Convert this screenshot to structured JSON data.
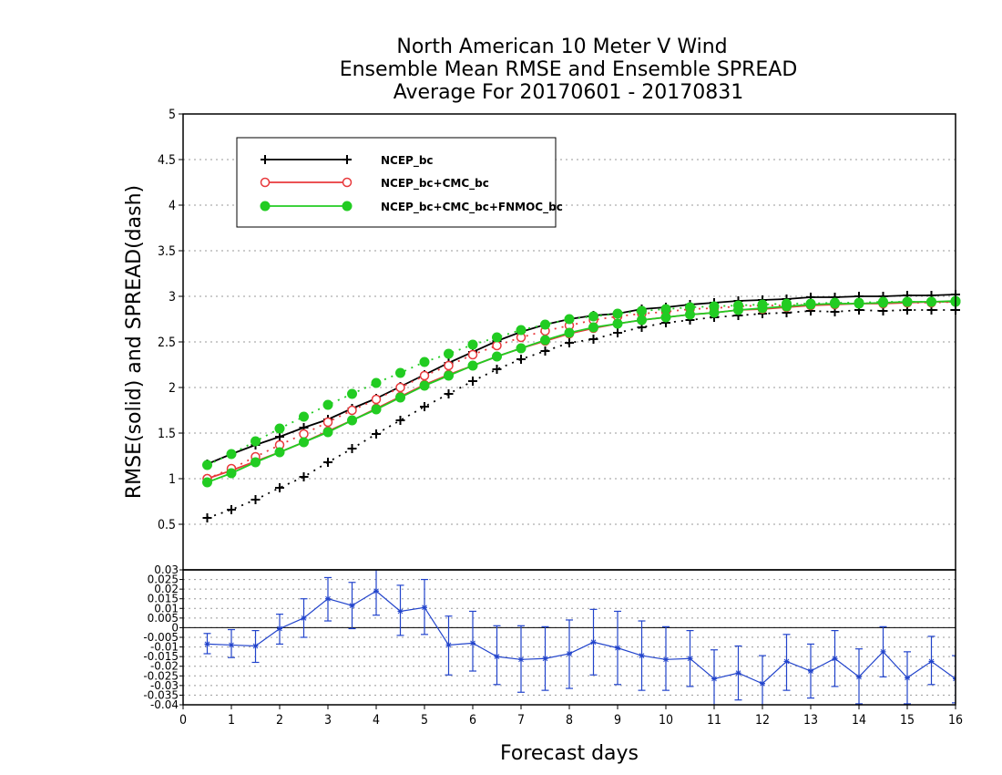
{
  "chart_data": [
    {
      "type": "line",
      "title_lines": [
        "North American 10 Meter V Wind",
        "Ensemble Mean RMSE and Ensemble SPREAD",
        "Average For 20170601 - 20170831"
      ],
      "ylabel": "RMSE(solid) and SPREAD(dash)",
      "ylim": [
        0,
        5
      ],
      "y_ticks": [
        0.5,
        1,
        1.5,
        2,
        2.5,
        3,
        3.5,
        4,
        4.5,
        5
      ],
      "y_tick_labels": [
        "0.5",
        "1",
        "1.5",
        "2",
        "2.5",
        "3",
        "3.5",
        "4",
        "4.5",
        "5"
      ],
      "grid": true,
      "legend_position": "top-left",
      "x": [
        0.5,
        1,
        1.5,
        2,
        2.5,
        3,
        3.5,
        4,
        4.5,
        5,
        5.5,
        6,
        6.5,
        7,
        7.5,
        8,
        8.5,
        9,
        9.5,
        10,
        10.5,
        11,
        11.5,
        12,
        12.5,
        13,
        13.5,
        14,
        14.5,
        15,
        15.5,
        16
      ],
      "series": [
        {
          "name": "NCEP_bc",
          "color": "#000000",
          "marker": "plus",
          "rmse": [
            1.16,
            1.27,
            1.37,
            1.46,
            1.56,
            1.65,
            1.77,
            1.88,
            2.01,
            2.14,
            2.27,
            2.39,
            2.51,
            2.61,
            2.69,
            2.75,
            2.79,
            2.81,
            2.86,
            2.88,
            2.91,
            2.93,
            2.95,
            2.96,
            2.97,
            2.99,
            2.99,
            3.0,
            3.0,
            3.01,
            3.01,
            3.02
          ],
          "spread": [
            0.57,
            0.66,
            0.77,
            0.9,
            1.02,
            1.18,
            1.33,
            1.49,
            1.64,
            1.79,
            1.93,
            2.07,
            2.2,
            2.31,
            2.4,
            2.49,
            2.53,
            2.6,
            2.66,
            2.71,
            2.74,
            2.77,
            2.79,
            2.81,
            2.82,
            2.84,
            2.83,
            2.85,
            2.84,
            2.85,
            2.85,
            2.85
          ]
        },
        {
          "name": "NCEP_bc+CMC_bc",
          "color": "#e8393c",
          "marker": "open-circle",
          "rmse": [
            1.0,
            1.09,
            1.19,
            1.29,
            1.4,
            1.52,
            1.64,
            1.77,
            1.9,
            2.03,
            2.14,
            2.24,
            2.34,
            2.43,
            2.51,
            2.59,
            2.65,
            2.7,
            2.74,
            2.77,
            2.8,
            2.82,
            2.85,
            2.86,
            2.88,
            2.9,
            2.91,
            2.92,
            2.92,
            2.93,
            2.94,
            2.94
          ],
          "spread": [
            1.0,
            1.11,
            1.24,
            1.37,
            1.49,
            1.62,
            1.75,
            1.87,
            2.0,
            2.13,
            2.24,
            2.36,
            2.46,
            2.55,
            2.62,
            2.68,
            2.74,
            2.78,
            2.81,
            2.83,
            2.86,
            2.87,
            2.89,
            2.9,
            2.9,
            2.91,
            2.92,
            2.92,
            2.93,
            2.93,
            2.93,
            2.94
          ]
        },
        {
          "name": "NCEP_bc+CMC_bc+FNMOC_bc",
          "color": "#22cc22",
          "marker": "filled-circle",
          "rmse": [
            0.96,
            1.06,
            1.18,
            1.29,
            1.4,
            1.51,
            1.64,
            1.76,
            1.89,
            2.02,
            2.13,
            2.24,
            2.34,
            2.43,
            2.52,
            2.6,
            2.66,
            2.7,
            2.74,
            2.77,
            2.8,
            2.82,
            2.85,
            2.87,
            2.89,
            2.91,
            2.92,
            2.92,
            2.93,
            2.94,
            2.94,
            2.95
          ],
          "spread": [
            1.15,
            1.27,
            1.41,
            1.55,
            1.68,
            1.81,
            1.93,
            2.05,
            2.16,
            2.28,
            2.37,
            2.47,
            2.55,
            2.63,
            2.69,
            2.75,
            2.78,
            2.81,
            2.84,
            2.86,
            2.88,
            2.89,
            2.9,
            2.91,
            2.92,
            2.92,
            2.93,
            2.93,
            2.94,
            2.94,
            2.94,
            2.94
          ]
        }
      ]
    },
    {
      "type": "line",
      "title": "",
      "xlabel": "Forecast days",
      "ylabel": "",
      "xlim": [
        0,
        16
      ],
      "x_ticks": [
        0,
        1,
        2,
        3,
        4,
        5,
        6,
        7,
        8,
        9,
        10,
        11,
        12,
        13,
        14,
        15,
        16
      ],
      "ylim": [
        -0.04,
        0.03
      ],
      "y_tick_labels": [
        "0.03",
        "0.025",
        "0.02",
        "0.015",
        "0.01",
        "0.005",
        "0",
        "-0.005",
        "-0.01",
        "-0.015",
        "-0.02",
        "-0.025",
        "-0.03",
        "-0.035",
        "-0.04"
      ],
      "reference_line": 0,
      "grid": true,
      "series": [
        {
          "color": "#2244cc",
          "marker": "star",
          "error_bars": true,
          "x": [
            0.5,
            1,
            1.5,
            2,
            2.5,
            3,
            3.5,
            4,
            4.5,
            5,
            5.5,
            6,
            6.5,
            7,
            7.5,
            8,
            8.5,
            9,
            9.5,
            10,
            10.5,
            11,
            11.5,
            12,
            12.5,
            13,
            13.5,
            14,
            14.5,
            15,
            15.5,
            16
          ],
          "values": [
            -0.0085,
            -0.009,
            -0.0095,
            -0.0005,
            0.005,
            0.015,
            0.0115,
            0.019,
            0.0085,
            0.0105,
            -0.009,
            -0.008,
            -0.015,
            -0.0165,
            -0.016,
            -0.0135,
            -0.0075,
            -0.0105,
            -0.0145,
            -0.0165,
            -0.016,
            -0.0265,
            -0.0235,
            -0.029,
            -0.0175,
            -0.0225,
            -0.016,
            -0.0255,
            -0.0125,
            -0.026,
            -0.0175,
            -0.0265
          ],
          "lower": [
            -0.0135,
            -0.0155,
            -0.018,
            -0.0085,
            -0.005,
            0.0035,
            -0.0005,
            0.0065,
            -0.004,
            -0.0035,
            -0.0245,
            -0.0225,
            -0.0295,
            -0.0335,
            -0.0325,
            -0.0315,
            -0.0245,
            -0.0295,
            -0.0325,
            -0.0325,
            -0.0305,
            -0.0405,
            -0.0375,
            -0.0435,
            -0.0325,
            -0.0365,
            -0.0305,
            -0.0395,
            -0.0255,
            -0.0395,
            -0.0295,
            -0.039
          ],
          "upper": [
            -0.003,
            -0.001,
            -0.0015,
            0.007,
            0.015,
            0.026,
            0.0235,
            0.031,
            0.022,
            0.025,
            0.006,
            0.0085,
            0.001,
            0.001,
            0.0005,
            0.004,
            0.0095,
            0.0085,
            0.0035,
            0.0005,
            -0.0015,
            -0.0115,
            -0.0095,
            -0.0145,
            -0.0035,
            -0.0085,
            -0.0015,
            -0.011,
            0.0005,
            -0.0125,
            -0.0045,
            -0.0145
          ]
        }
      ]
    }
  ]
}
